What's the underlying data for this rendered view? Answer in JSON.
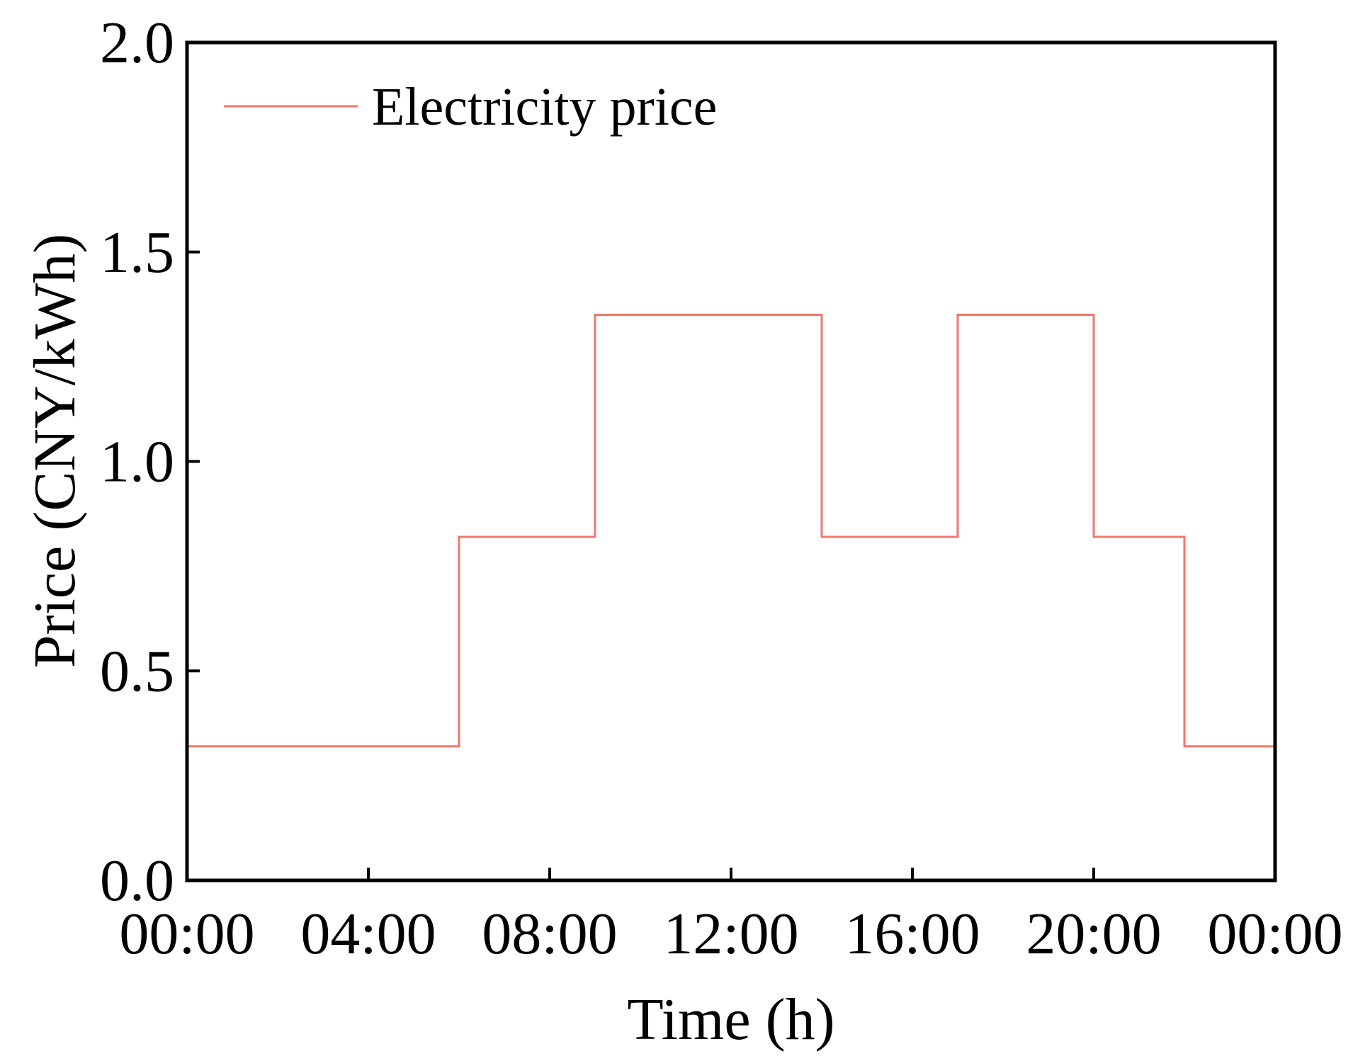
{
  "chart_data": {
    "type": "line",
    "step": "post",
    "title": "",
    "xlabel": "Time (h)",
    "ylabel": "Price (CNY/kWh)",
    "xlim": [
      0,
      24
    ],
    "ylim": [
      0,
      2.0
    ],
    "grid": false,
    "legend_position": "top-left",
    "x_ticks": [
      0,
      4,
      8,
      12,
      16,
      20,
      24
    ],
    "x_tick_labels": [
      "00:00",
      "04:00",
      "08:00",
      "12:00",
      "16:00",
      "20:00",
      "00:00"
    ],
    "y_ticks": [
      0,
      0.5,
      1.0,
      1.5,
      2.0
    ],
    "y_tick_labels": [
      "0.0",
      "0.5",
      "1.0",
      "1.5",
      "2.0"
    ],
    "series": [
      {
        "name": "Electricity price",
        "color": "#f2766b",
        "x": [
          0,
          6,
          9,
          14,
          17,
          20,
          22,
          24
        ],
        "y": [
          0.32,
          0.82,
          1.35,
          0.82,
          1.35,
          0.82,
          0.32,
          0.32
        ]
      }
    ]
  }
}
